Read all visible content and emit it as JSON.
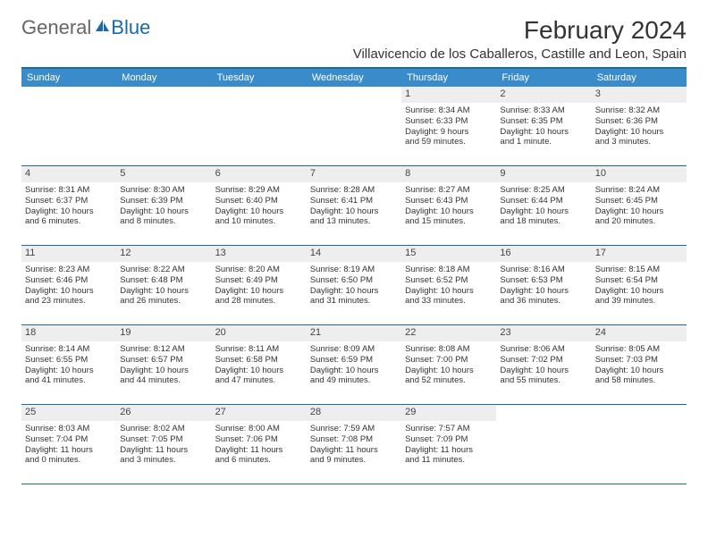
{
  "brand": {
    "part1": "General",
    "part2": "Blue"
  },
  "title": "February 2024",
  "location": "Villavicencio de los Caballeros, Castille and Leon, Spain",
  "weekdays": [
    "Sunday",
    "Monday",
    "Tuesday",
    "Wednesday",
    "Thursday",
    "Friday",
    "Saturday"
  ],
  "colors": {
    "header_bar": "#3a8bc9",
    "rule": "#1b6aa5",
    "daynum_bg": "#eeeeee",
    "text": "#333333",
    "logo_blue": "#1b6aa5"
  },
  "leading_blanks": 4,
  "days": [
    {
      "n": "1",
      "sunrise": "Sunrise: 8:34 AM",
      "sunset": "Sunset: 6:33 PM",
      "day1": "Daylight: 9 hours",
      "day2": "and 59 minutes."
    },
    {
      "n": "2",
      "sunrise": "Sunrise: 8:33 AM",
      "sunset": "Sunset: 6:35 PM",
      "day1": "Daylight: 10 hours",
      "day2": "and 1 minute."
    },
    {
      "n": "3",
      "sunrise": "Sunrise: 8:32 AM",
      "sunset": "Sunset: 6:36 PM",
      "day1": "Daylight: 10 hours",
      "day2": "and 3 minutes."
    },
    {
      "n": "4",
      "sunrise": "Sunrise: 8:31 AM",
      "sunset": "Sunset: 6:37 PM",
      "day1": "Daylight: 10 hours",
      "day2": "and 6 minutes."
    },
    {
      "n": "5",
      "sunrise": "Sunrise: 8:30 AM",
      "sunset": "Sunset: 6:39 PM",
      "day1": "Daylight: 10 hours",
      "day2": "and 8 minutes."
    },
    {
      "n": "6",
      "sunrise": "Sunrise: 8:29 AM",
      "sunset": "Sunset: 6:40 PM",
      "day1": "Daylight: 10 hours",
      "day2": "and 10 minutes."
    },
    {
      "n": "7",
      "sunrise": "Sunrise: 8:28 AM",
      "sunset": "Sunset: 6:41 PM",
      "day1": "Daylight: 10 hours",
      "day2": "and 13 minutes."
    },
    {
      "n": "8",
      "sunrise": "Sunrise: 8:27 AM",
      "sunset": "Sunset: 6:43 PM",
      "day1": "Daylight: 10 hours",
      "day2": "and 15 minutes."
    },
    {
      "n": "9",
      "sunrise": "Sunrise: 8:25 AM",
      "sunset": "Sunset: 6:44 PM",
      "day1": "Daylight: 10 hours",
      "day2": "and 18 minutes."
    },
    {
      "n": "10",
      "sunrise": "Sunrise: 8:24 AM",
      "sunset": "Sunset: 6:45 PM",
      "day1": "Daylight: 10 hours",
      "day2": "and 20 minutes."
    },
    {
      "n": "11",
      "sunrise": "Sunrise: 8:23 AM",
      "sunset": "Sunset: 6:46 PM",
      "day1": "Daylight: 10 hours",
      "day2": "and 23 minutes."
    },
    {
      "n": "12",
      "sunrise": "Sunrise: 8:22 AM",
      "sunset": "Sunset: 6:48 PM",
      "day1": "Daylight: 10 hours",
      "day2": "and 26 minutes."
    },
    {
      "n": "13",
      "sunrise": "Sunrise: 8:20 AM",
      "sunset": "Sunset: 6:49 PM",
      "day1": "Daylight: 10 hours",
      "day2": "and 28 minutes."
    },
    {
      "n": "14",
      "sunrise": "Sunrise: 8:19 AM",
      "sunset": "Sunset: 6:50 PM",
      "day1": "Daylight: 10 hours",
      "day2": "and 31 minutes."
    },
    {
      "n": "15",
      "sunrise": "Sunrise: 8:18 AM",
      "sunset": "Sunset: 6:52 PM",
      "day1": "Daylight: 10 hours",
      "day2": "and 33 minutes."
    },
    {
      "n": "16",
      "sunrise": "Sunrise: 8:16 AM",
      "sunset": "Sunset: 6:53 PM",
      "day1": "Daylight: 10 hours",
      "day2": "and 36 minutes."
    },
    {
      "n": "17",
      "sunrise": "Sunrise: 8:15 AM",
      "sunset": "Sunset: 6:54 PM",
      "day1": "Daylight: 10 hours",
      "day2": "and 39 minutes."
    },
    {
      "n": "18",
      "sunrise": "Sunrise: 8:14 AM",
      "sunset": "Sunset: 6:55 PM",
      "day1": "Daylight: 10 hours",
      "day2": "and 41 minutes."
    },
    {
      "n": "19",
      "sunrise": "Sunrise: 8:12 AM",
      "sunset": "Sunset: 6:57 PM",
      "day1": "Daylight: 10 hours",
      "day2": "and 44 minutes."
    },
    {
      "n": "20",
      "sunrise": "Sunrise: 8:11 AM",
      "sunset": "Sunset: 6:58 PM",
      "day1": "Daylight: 10 hours",
      "day2": "and 47 minutes."
    },
    {
      "n": "21",
      "sunrise": "Sunrise: 8:09 AM",
      "sunset": "Sunset: 6:59 PM",
      "day1": "Daylight: 10 hours",
      "day2": "and 49 minutes."
    },
    {
      "n": "22",
      "sunrise": "Sunrise: 8:08 AM",
      "sunset": "Sunset: 7:00 PM",
      "day1": "Daylight: 10 hours",
      "day2": "and 52 minutes."
    },
    {
      "n": "23",
      "sunrise": "Sunrise: 8:06 AM",
      "sunset": "Sunset: 7:02 PM",
      "day1": "Daylight: 10 hours",
      "day2": "and 55 minutes."
    },
    {
      "n": "24",
      "sunrise": "Sunrise: 8:05 AM",
      "sunset": "Sunset: 7:03 PM",
      "day1": "Daylight: 10 hours",
      "day2": "and 58 minutes."
    },
    {
      "n": "25",
      "sunrise": "Sunrise: 8:03 AM",
      "sunset": "Sunset: 7:04 PM",
      "day1": "Daylight: 11 hours",
      "day2": "and 0 minutes."
    },
    {
      "n": "26",
      "sunrise": "Sunrise: 8:02 AM",
      "sunset": "Sunset: 7:05 PM",
      "day1": "Daylight: 11 hours",
      "day2": "and 3 minutes."
    },
    {
      "n": "27",
      "sunrise": "Sunrise: 8:00 AM",
      "sunset": "Sunset: 7:06 PM",
      "day1": "Daylight: 11 hours",
      "day2": "and 6 minutes."
    },
    {
      "n": "28",
      "sunrise": "Sunrise: 7:59 AM",
      "sunset": "Sunset: 7:08 PM",
      "day1": "Daylight: 11 hours",
      "day2": "and 9 minutes."
    },
    {
      "n": "29",
      "sunrise": "Sunrise: 7:57 AM",
      "sunset": "Sunset: 7:09 PM",
      "day1": "Daylight: 11 hours",
      "day2": "and 11 minutes."
    }
  ]
}
